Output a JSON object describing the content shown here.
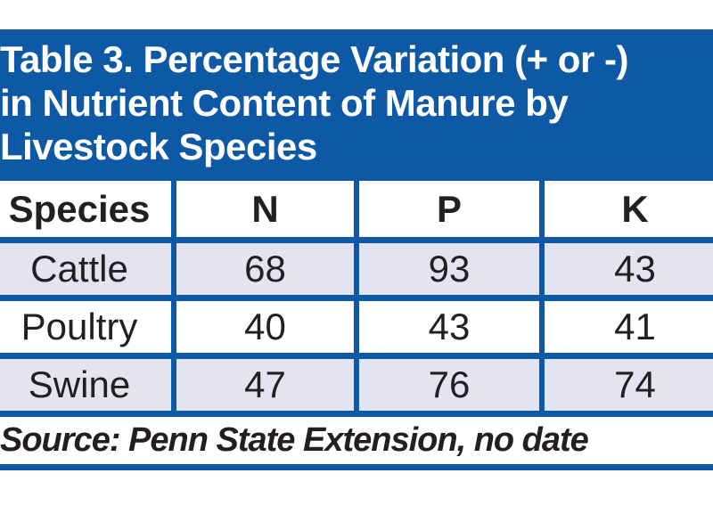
{
  "title": {
    "lines": [
      "Table 3. Percentage Variation (+ or -)",
      "in Nutrient Content of Manure by",
      "Livestock Species"
    ]
  },
  "table": {
    "columns": [
      "Species",
      "N",
      "P",
      "K"
    ],
    "rows": [
      {
        "label": "Cattle",
        "values": [
          "68",
          "93",
          "43"
        ]
      },
      {
        "label": "Poultry",
        "values": [
          "40",
          "43",
          "41"
        ]
      },
      {
        "label": "Swine",
        "values": [
          "47",
          "76",
          "74"
        ]
      }
    ]
  },
  "source": "Source: Penn State Extension, no date",
  "colors": {
    "band_blue": "#0d59a6",
    "row_shade": "#e4e4f0",
    "text_ink": "#231f20",
    "title_text": "#ffffff"
  },
  "chart_data": {
    "type": "table",
    "title": "Table 3. Percentage Variation (+ or -) in Nutrient Content of Manure by Livestock Species",
    "columns": [
      "Species",
      "N",
      "P",
      "K"
    ],
    "rows": [
      [
        "Cattle",
        68,
        93,
        43
      ],
      [
        "Poultry",
        40,
        43,
        41
      ],
      [
        "Swine",
        47,
        76,
        74
      ]
    ],
    "source": "Source: Penn State Extension, no date"
  }
}
